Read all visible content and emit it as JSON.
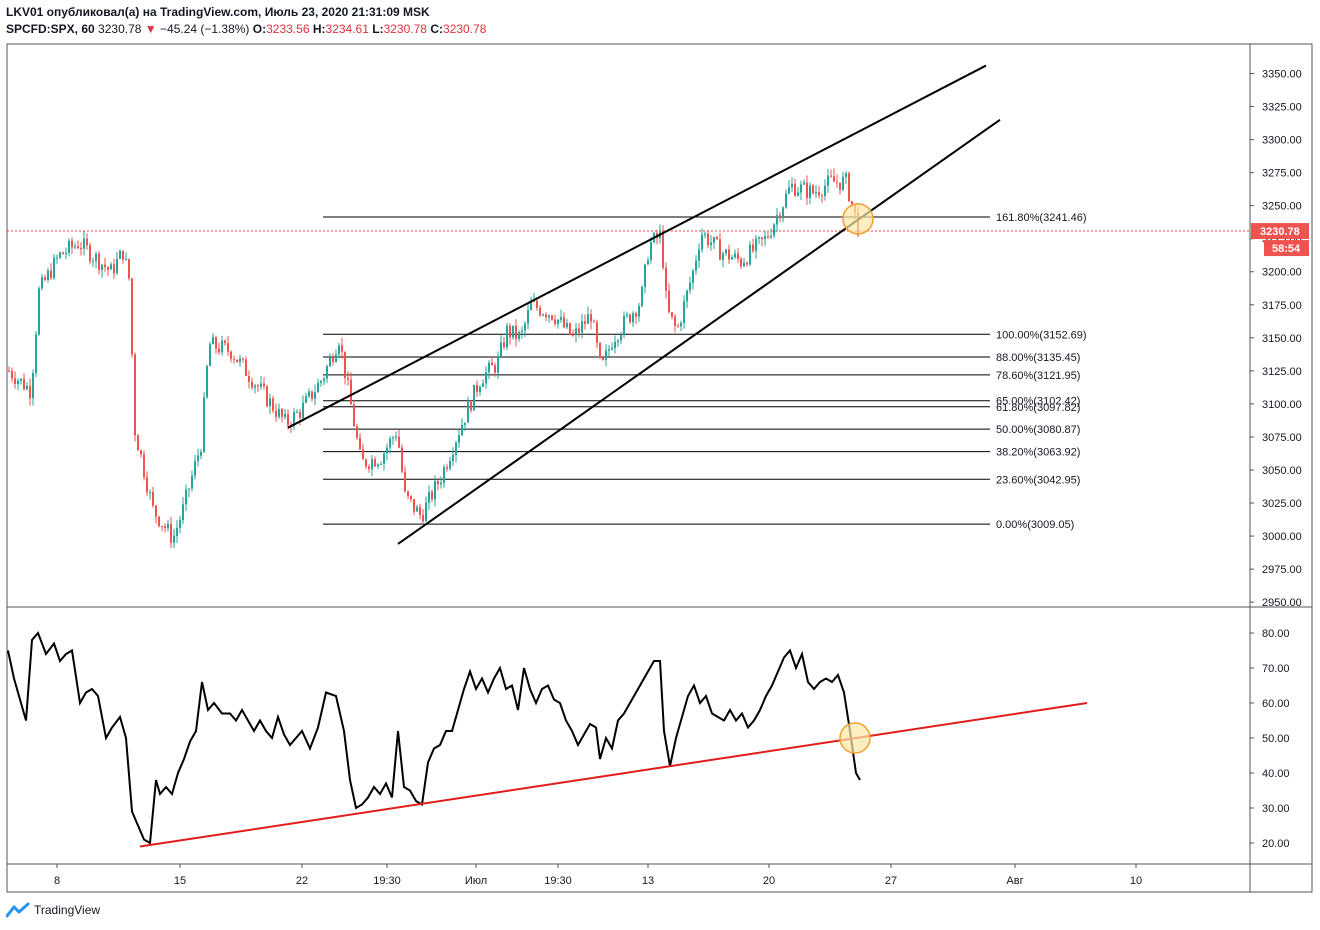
{
  "header": {
    "line1": "LKV01 опубликовал(а) на TradingView.com, Июль 23, 2020 21:31:09 MSK",
    "symbol": "SPCFD:SPX, 60",
    "price": "3230.78",
    "change_arrow": "▼",
    "change": "−45.24 (−1.38%)",
    "o_label": "O:",
    "o_value": "3233.56",
    "h_label": "H:",
    "h_value": "3234.61",
    "l_label": "L:",
    "l_value": "3230.78",
    "c_label": "C:",
    "c_value": "3230.78"
  },
  "footer": {
    "brand": "TradingView"
  },
  "colors": {
    "up": "#26a69a",
    "down": "#ef5350",
    "line": "#000000",
    "trend_red": "#e31b1b",
    "price_tag": "#ef5350",
    "circle_fill": "#fbe7a5",
    "circle_stroke": "#f0a030"
  },
  "chart_data": [
    {
      "type": "candlestick",
      "ylim": [
        2945,
        3365
      ],
      "y_ticks": [
        2950,
        2975,
        3000,
        3025,
        3050,
        3075,
        3100,
        3125,
        3150,
        3175,
        3200,
        3225,
        3250,
        3275,
        3300,
        3325,
        3350
      ],
      "y_tick_labels": [
        "2950.00",
        "2975.00",
        "3000.00",
        "3025.00",
        "3050.00",
        "3075.00",
        "3100.00",
        "3125.00",
        "3150.00",
        "3175.00",
        "3200.00",
        "3225.00",
        "3250.00",
        "3275.00",
        "3300.00",
        "3325.00",
        "3350.00"
      ],
      "x_tick_labels": [
        "8",
        "15",
        "22",
        "19:30",
        "Июл",
        "19:30",
        "13",
        "20",
        "27",
        "Авг",
        "10"
      ],
      "x_range": [
        0,
        1250
      ],
      "x_ticks": [
        57,
        180,
        302,
        387,
        476,
        558,
        648,
        769,
        891,
        1015,
        1136
      ],
      "current_price": 3230.78,
      "current_price_label": "3230.78",
      "countdown_label": "58:54",
      "price_path": [
        [
          8,
          3125
        ],
        [
          30,
          3110
        ],
        [
          38,
          3185
        ],
        [
          58,
          3212
        ],
        [
          78,
          3222
        ],
        [
          110,
          3200
        ],
        [
          122,
          3215
        ],
        [
          128,
          3195
        ],
        [
          134,
          3080
        ],
        [
          152,
          3020
        ],
        [
          172,
          2998
        ],
        [
          182,
          3020
        ],
        [
          200,
          3070
        ],
        [
          208,
          3145
        ],
        [
          230,
          3140
        ],
        [
          260,
          3110
        ],
        [
          285,
          3085
        ],
        [
          300,
          3095
        ],
        [
          322,
          3120
        ],
        [
          338,
          3150
        ],
        [
          352,
          3090
        ],
        [
          360,
          3055
        ],
        [
          380,
          3060
        ],
        [
          396,
          3080
        ],
        [
          404,
          3030
        ],
        [
          420,
          3015
        ],
        [
          440,
          3045
        ],
        [
          458,
          3080
        ],
        [
          480,
          3120
        ],
        [
          496,
          3130
        ],
        [
          506,
          3155
        ],
        [
          520,
          3150
        ],
        [
          530,
          3175
        ],
        [
          552,
          3168
        ],
        [
          572,
          3150
        ],
        [
          590,
          3168
        ],
        [
          600,
          3125
        ],
        [
          612,
          3150
        ],
        [
          640,
          3178
        ],
        [
          648,
          3220
        ],
        [
          660,
          3228
        ],
        [
          666,
          3170
        ],
        [
          676,
          3155
        ],
        [
          692,
          3200
        ],
        [
          700,
          3230
        ],
        [
          720,
          3215
        ],
        [
          740,
          3208
        ],
        [
          765,
          3225
        ],
        [
          790,
          3265
        ],
        [
          812,
          3260
        ],
        [
          830,
          3268
        ],
        [
          845,
          3268
        ],
        [
          858,
          3231
        ]
      ],
      "fib_levels": [
        {
          "label": "161.80%(3241.46)",
          "value": 3241.46
        },
        {
          "label": "100.00%(3152.69)",
          "value": 3152.69
        },
        {
          "label": "88.00%(3135.45)",
          "value": 3135.45
        },
        {
          "label": "78.60%(3121.95)",
          "value": 3121.95
        },
        {
          "label": "65.00%(3102.42)",
          "value": 3102.42
        },
        {
          "label": "61.80%(3097.82)",
          "value": 3097.82
        },
        {
          "label": "50.00%(3080.87)",
          "value": 3080.87
        },
        {
          "label": "38.20%(3063.92)",
          "value": 3063.92
        },
        {
          "label": "23.60%(3042.95)",
          "value": 3042.95
        },
        {
          "label": "0.00%(3009.05)",
          "value": 3009.05
        }
      ],
      "fib_x_range": [
        323,
        990
      ],
      "trendlines": [
        {
          "name": "upper",
          "from": [
            288,
            3082
          ],
          "to": [
            986,
            3356
          ]
        },
        {
          "name": "lower",
          "from": [
            398,
            2994
          ],
          "to": [
            1000,
            3315
          ]
        }
      ],
      "highlight": {
        "x": 858,
        "y": 3240
      }
    },
    {
      "type": "line",
      "ylim": [
        14,
        86
      ],
      "y_ticks": [
        20,
        30,
        40,
        50,
        60,
        70,
        80
      ],
      "y_tick_labels": [
        "20.00",
        "30.00",
        "40.00",
        "50.00",
        "60.00",
        "70.00",
        "80.00"
      ],
      "series_points": [
        [
          8,
          75
        ],
        [
          14,
          67
        ],
        [
          20,
          61
        ],
        [
          26,
          55
        ],
        [
          32,
          78
        ],
        [
          38,
          80
        ],
        [
          46,
          74
        ],
        [
          54,
          77
        ],
        [
          60,
          72
        ],
        [
          66,
          74
        ],
        [
          72,
          75
        ],
        [
          80,
          60
        ],
        [
          86,
          63
        ],
        [
          92,
          64
        ],
        [
          98,
          62
        ],
        [
          106,
          50
        ],
        [
          112,
          53
        ],
        [
          120,
          56
        ],
        [
          126,
          50
        ],
        [
          132,
          29
        ],
        [
          138,
          25
        ],
        [
          144,
          21
        ],
        [
          150,
          20
        ],
        [
          156,
          38
        ],
        [
          160,
          34
        ],
        [
          166,
          36
        ],
        [
          172,
          34
        ],
        [
          178,
          40
        ],
        [
          184,
          44
        ],
        [
          190,
          49
        ],
        [
          196,
          52
        ],
        [
          202,
          66
        ],
        [
          208,
          58
        ],
        [
          214,
          60
        ],
        [
          222,
          57
        ],
        [
          230,
          57
        ],
        [
          236,
          55
        ],
        [
          242,
          58
        ],
        [
          248,
          55
        ],
        [
          254,
          52
        ],
        [
          260,
          55
        ],
        [
          266,
          52
        ],
        [
          272,
          50
        ],
        [
          278,
          56
        ],
        [
          284,
          51
        ],
        [
          290,
          48
        ],
        [
          296,
          50
        ],
        [
          302,
          52
        ],
        [
          310,
          47
        ],
        [
          318,
          53
        ],
        [
          326,
          63
        ],
        [
          336,
          62
        ],
        [
          344,
          52
        ],
        [
          350,
          38
        ],
        [
          356,
          30
        ],
        [
          362,
          31
        ],
        [
          368,
          33
        ],
        [
          374,
          36
        ],
        [
          380,
          34
        ],
        [
          386,
          37
        ],
        [
          392,
          33
        ],
        [
          398,
          52
        ],
        [
          404,
          36
        ],
        [
          410,
          35
        ],
        [
          416,
          32
        ],
        [
          422,
          31
        ],
        [
          428,
          43
        ],
        [
          434,
          47
        ],
        [
          440,
          48
        ],
        [
          446,
          52
        ],
        [
          452,
          52
        ],
        [
          458,
          58
        ],
        [
          464,
          64
        ],
        [
          470,
          69
        ],
        [
          476,
          64
        ],
        [
          482,
          67
        ],
        [
          488,
          63
        ],
        [
          494,
          67
        ],
        [
          500,
          70
        ],
        [
          506,
          64
        ],
        [
          512,
          65
        ],
        [
          518,
          58
        ],
        [
          524,
          70
        ],
        [
          530,
          64
        ],
        [
          536,
          60
        ],
        [
          542,
          64
        ],
        [
          548,
          65
        ],
        [
          554,
          61
        ],
        [
          560,
          60
        ],
        [
          566,
          55
        ],
        [
          572,
          52
        ],
        [
          578,
          48
        ],
        [
          584,
          51
        ],
        [
          590,
          54
        ],
        [
          596,
          53
        ],
        [
          600,
          44
        ],
        [
          606,
          50
        ],
        [
          612,
          47
        ],
        [
          618,
          55
        ],
        [
          624,
          57
        ],
        [
          630,
          60
        ],
        [
          636,
          63
        ],
        [
          642,
          66
        ],
        [
          648,
          69
        ],
        [
          654,
          72
        ],
        [
          660,
          72
        ],
        [
          664,
          52
        ],
        [
          670,
          42
        ],
        [
          676,
          50
        ],
        [
          682,
          56
        ],
        [
          688,
          62
        ],
        [
          694,
          65
        ],
        [
          700,
          60
        ],
        [
          706,
          62
        ],
        [
          712,
          57
        ],
        [
          718,
          56
        ],
        [
          724,
          55
        ],
        [
          730,
          58
        ],
        [
          736,
          55
        ],
        [
          742,
          57
        ],
        [
          748,
          53
        ],
        [
          754,
          55
        ],
        [
          760,
          58
        ],
        [
          766,
          62
        ],
        [
          772,
          65
        ],
        [
          778,
          69
        ],
        [
          784,
          73
        ],
        [
          790,
          75
        ],
        [
          796,
          70
        ],
        [
          802,
          74
        ],
        [
          808,
          66
        ],
        [
          814,
          64
        ],
        [
          820,
          66
        ],
        [
          826,
          67
        ],
        [
          832,
          66
        ],
        [
          838,
          68
        ],
        [
          844,
          63
        ],
        [
          850,
          52
        ],
        [
          856,
          40
        ],
        [
          860,
          38
        ]
      ],
      "trendline": {
        "from": [
          140,
          19
        ],
        "to": [
          1087,
          60
        ]
      },
      "highlight": {
        "x": 855,
        "y": 50
      }
    }
  ]
}
